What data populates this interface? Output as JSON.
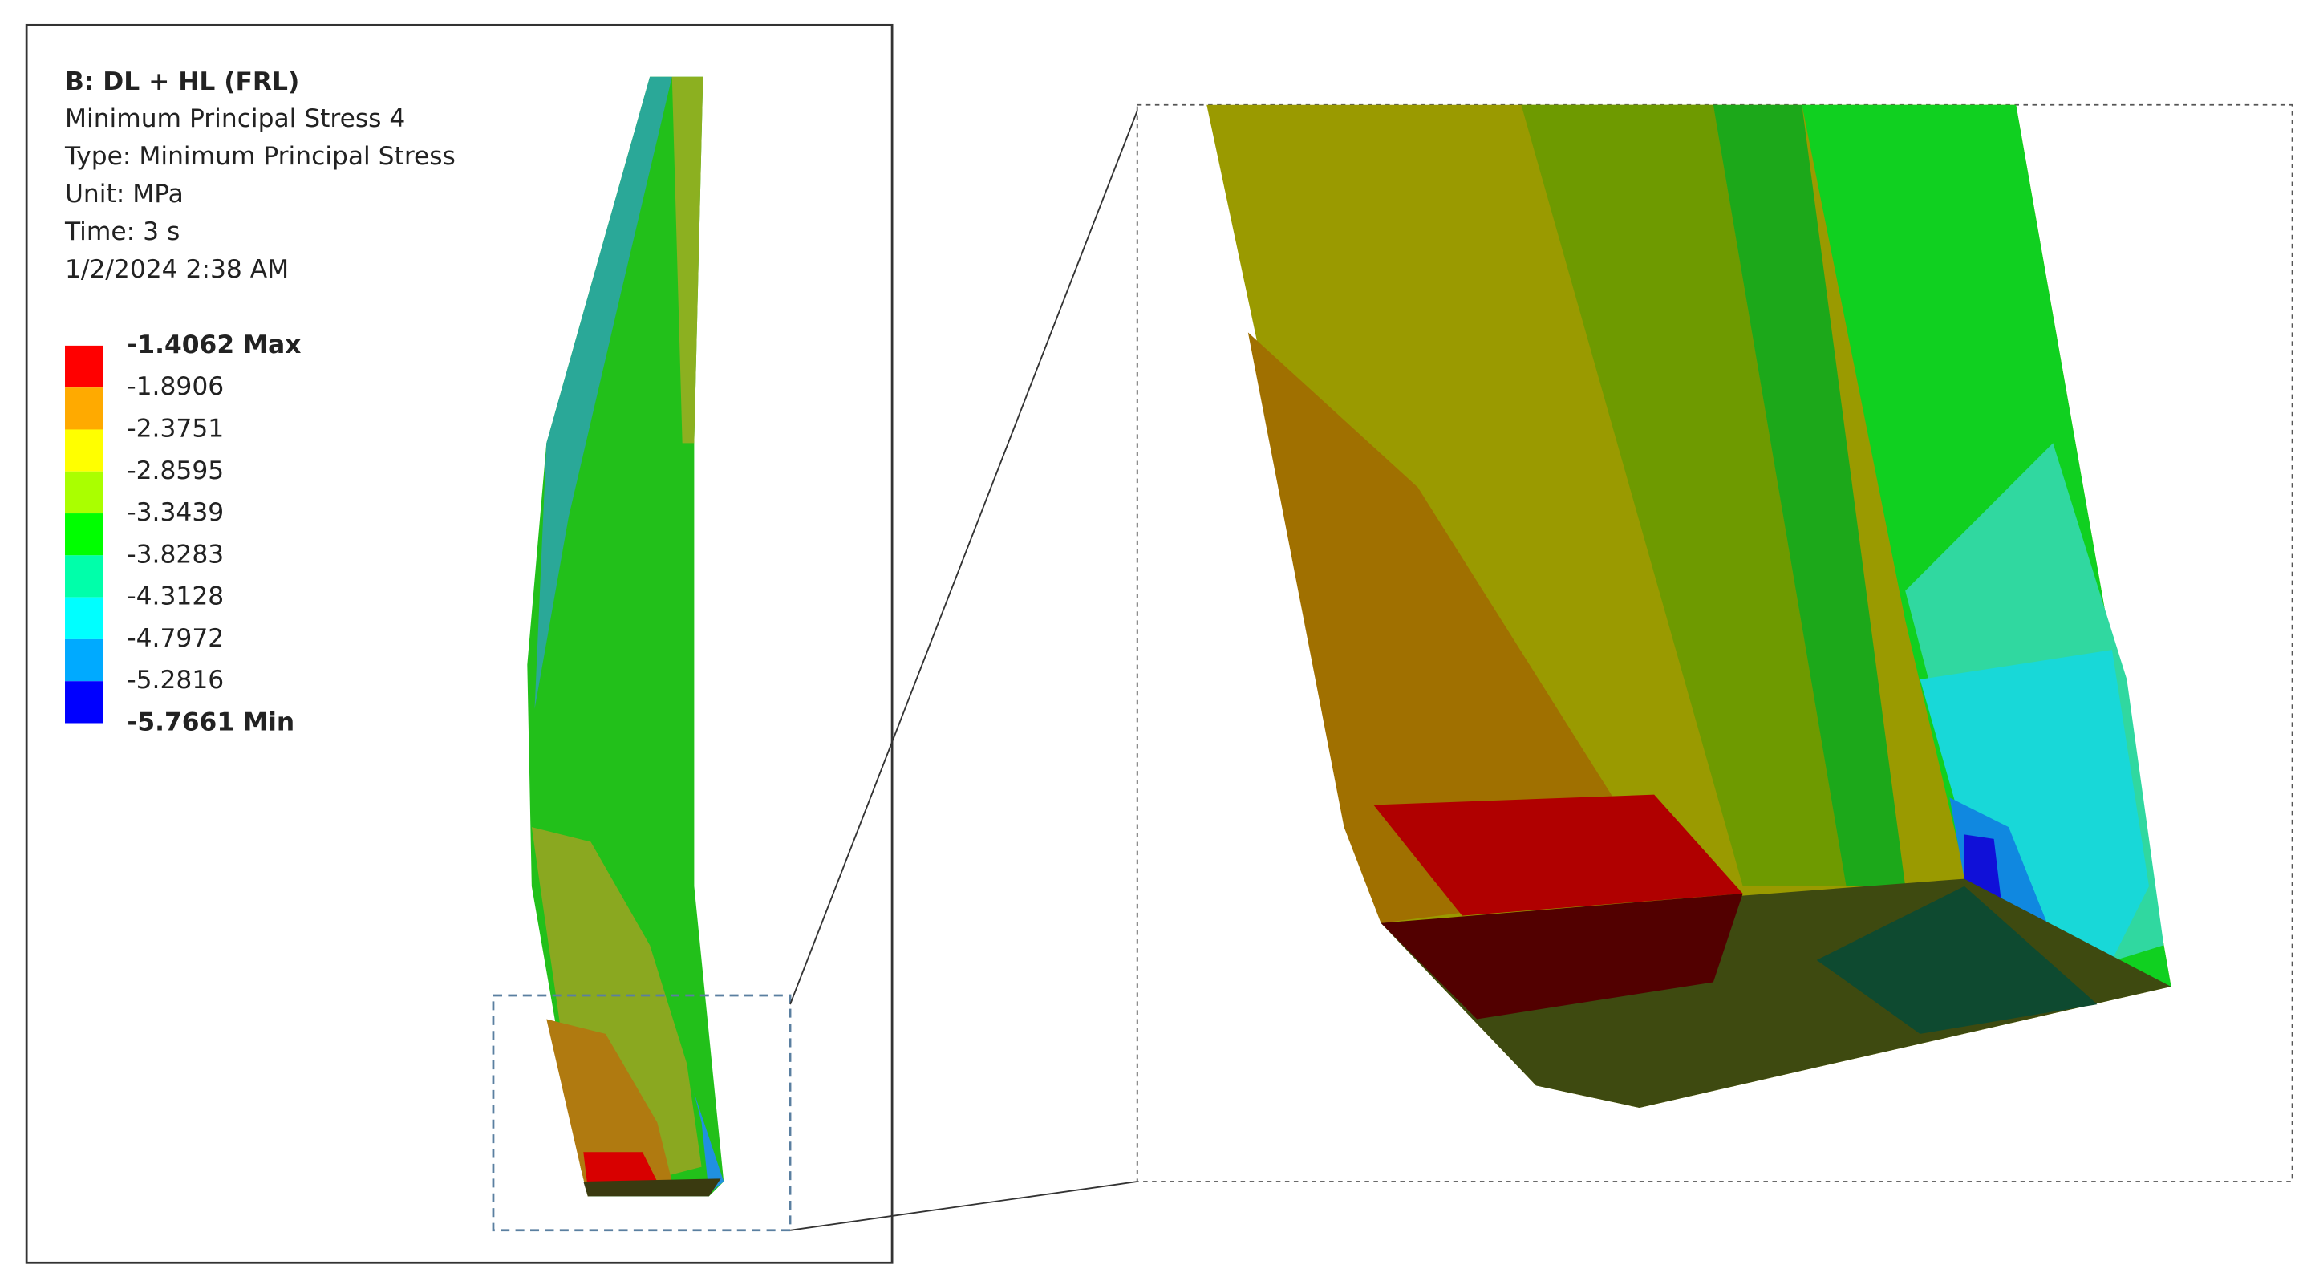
{
  "header": {
    "title": "B: DL + HL (FRL)",
    "lines": [
      "Minimum Principal Stress 4",
      "Type: Minimum Principal Stress",
      "Unit: MPa",
      "Time: 3 s",
      "1/2/2024 2:38 AM"
    ]
  },
  "legend": {
    "labels": [
      "-1.4062 Max",
      "-1.8906",
      "-2.3751",
      "-2.8595",
      "-3.3439",
      "-3.8283",
      "-4.3128",
      "-4.7972",
      "-5.2816",
      "-5.7661 Min"
    ],
    "colors": [
      "#ff0000",
      "#ffaa00",
      "#ffff00",
      "#aaff00",
      "#00ff00",
      "#00ffaa",
      "#00ffff",
      "#00aaff",
      "#0000ff"
    ]
  }
}
